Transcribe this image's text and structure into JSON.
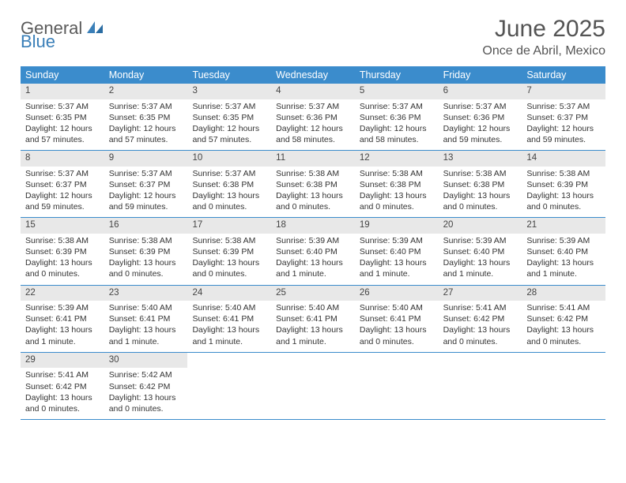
{
  "logo": {
    "text1": "General",
    "text2": "Blue",
    "icon_color": "#3a7fb8"
  },
  "title": "June 2025",
  "subtitle": "Once de Abril, Mexico",
  "header_bg": "#3b8ccc",
  "day_bar_bg": "#e8e8e8",
  "border_color": "#3b8ccc",
  "day_headers": [
    "Sunday",
    "Monday",
    "Tuesday",
    "Wednesday",
    "Thursday",
    "Friday",
    "Saturday"
  ],
  "weeks": [
    [
      {
        "n": "1",
        "sr": "Sunrise: 5:37 AM",
        "ss": "Sunset: 6:35 PM",
        "dl": "Daylight: 12 hours and 57 minutes."
      },
      {
        "n": "2",
        "sr": "Sunrise: 5:37 AM",
        "ss": "Sunset: 6:35 PM",
        "dl": "Daylight: 12 hours and 57 minutes."
      },
      {
        "n": "3",
        "sr": "Sunrise: 5:37 AM",
        "ss": "Sunset: 6:35 PM",
        "dl": "Daylight: 12 hours and 57 minutes."
      },
      {
        "n": "4",
        "sr": "Sunrise: 5:37 AM",
        "ss": "Sunset: 6:36 PM",
        "dl": "Daylight: 12 hours and 58 minutes."
      },
      {
        "n": "5",
        "sr": "Sunrise: 5:37 AM",
        "ss": "Sunset: 6:36 PM",
        "dl": "Daylight: 12 hours and 58 minutes."
      },
      {
        "n": "6",
        "sr": "Sunrise: 5:37 AM",
        "ss": "Sunset: 6:36 PM",
        "dl": "Daylight: 12 hours and 59 minutes."
      },
      {
        "n": "7",
        "sr": "Sunrise: 5:37 AM",
        "ss": "Sunset: 6:37 PM",
        "dl": "Daylight: 12 hours and 59 minutes."
      }
    ],
    [
      {
        "n": "8",
        "sr": "Sunrise: 5:37 AM",
        "ss": "Sunset: 6:37 PM",
        "dl": "Daylight: 12 hours and 59 minutes."
      },
      {
        "n": "9",
        "sr": "Sunrise: 5:37 AM",
        "ss": "Sunset: 6:37 PM",
        "dl": "Daylight: 12 hours and 59 minutes."
      },
      {
        "n": "10",
        "sr": "Sunrise: 5:37 AM",
        "ss": "Sunset: 6:38 PM",
        "dl": "Daylight: 13 hours and 0 minutes."
      },
      {
        "n": "11",
        "sr": "Sunrise: 5:38 AM",
        "ss": "Sunset: 6:38 PM",
        "dl": "Daylight: 13 hours and 0 minutes."
      },
      {
        "n": "12",
        "sr": "Sunrise: 5:38 AM",
        "ss": "Sunset: 6:38 PM",
        "dl": "Daylight: 13 hours and 0 minutes."
      },
      {
        "n": "13",
        "sr": "Sunrise: 5:38 AM",
        "ss": "Sunset: 6:38 PM",
        "dl": "Daylight: 13 hours and 0 minutes."
      },
      {
        "n": "14",
        "sr": "Sunrise: 5:38 AM",
        "ss": "Sunset: 6:39 PM",
        "dl": "Daylight: 13 hours and 0 minutes."
      }
    ],
    [
      {
        "n": "15",
        "sr": "Sunrise: 5:38 AM",
        "ss": "Sunset: 6:39 PM",
        "dl": "Daylight: 13 hours and 0 minutes."
      },
      {
        "n": "16",
        "sr": "Sunrise: 5:38 AM",
        "ss": "Sunset: 6:39 PM",
        "dl": "Daylight: 13 hours and 0 minutes."
      },
      {
        "n": "17",
        "sr": "Sunrise: 5:38 AM",
        "ss": "Sunset: 6:39 PM",
        "dl": "Daylight: 13 hours and 0 minutes."
      },
      {
        "n": "18",
        "sr": "Sunrise: 5:39 AM",
        "ss": "Sunset: 6:40 PM",
        "dl": "Daylight: 13 hours and 1 minute."
      },
      {
        "n": "19",
        "sr": "Sunrise: 5:39 AM",
        "ss": "Sunset: 6:40 PM",
        "dl": "Daylight: 13 hours and 1 minute."
      },
      {
        "n": "20",
        "sr": "Sunrise: 5:39 AM",
        "ss": "Sunset: 6:40 PM",
        "dl": "Daylight: 13 hours and 1 minute."
      },
      {
        "n": "21",
        "sr": "Sunrise: 5:39 AM",
        "ss": "Sunset: 6:40 PM",
        "dl": "Daylight: 13 hours and 1 minute."
      }
    ],
    [
      {
        "n": "22",
        "sr": "Sunrise: 5:39 AM",
        "ss": "Sunset: 6:41 PM",
        "dl": "Daylight: 13 hours and 1 minute."
      },
      {
        "n": "23",
        "sr": "Sunrise: 5:40 AM",
        "ss": "Sunset: 6:41 PM",
        "dl": "Daylight: 13 hours and 1 minute."
      },
      {
        "n": "24",
        "sr": "Sunrise: 5:40 AM",
        "ss": "Sunset: 6:41 PM",
        "dl": "Daylight: 13 hours and 1 minute."
      },
      {
        "n": "25",
        "sr": "Sunrise: 5:40 AM",
        "ss": "Sunset: 6:41 PM",
        "dl": "Daylight: 13 hours and 1 minute."
      },
      {
        "n": "26",
        "sr": "Sunrise: 5:40 AM",
        "ss": "Sunset: 6:41 PM",
        "dl": "Daylight: 13 hours and 0 minutes."
      },
      {
        "n": "27",
        "sr": "Sunrise: 5:41 AM",
        "ss": "Sunset: 6:42 PM",
        "dl": "Daylight: 13 hours and 0 minutes."
      },
      {
        "n": "28",
        "sr": "Sunrise: 5:41 AM",
        "ss": "Sunset: 6:42 PM",
        "dl": "Daylight: 13 hours and 0 minutes."
      }
    ],
    [
      {
        "n": "29",
        "sr": "Sunrise: 5:41 AM",
        "ss": "Sunset: 6:42 PM",
        "dl": "Daylight: 13 hours and 0 minutes."
      },
      {
        "n": "30",
        "sr": "Sunrise: 5:42 AM",
        "ss": "Sunset: 6:42 PM",
        "dl": "Daylight: 13 hours and 0 minutes."
      },
      {
        "empty": true
      },
      {
        "empty": true
      },
      {
        "empty": true
      },
      {
        "empty": true
      },
      {
        "empty": true
      }
    ]
  ]
}
